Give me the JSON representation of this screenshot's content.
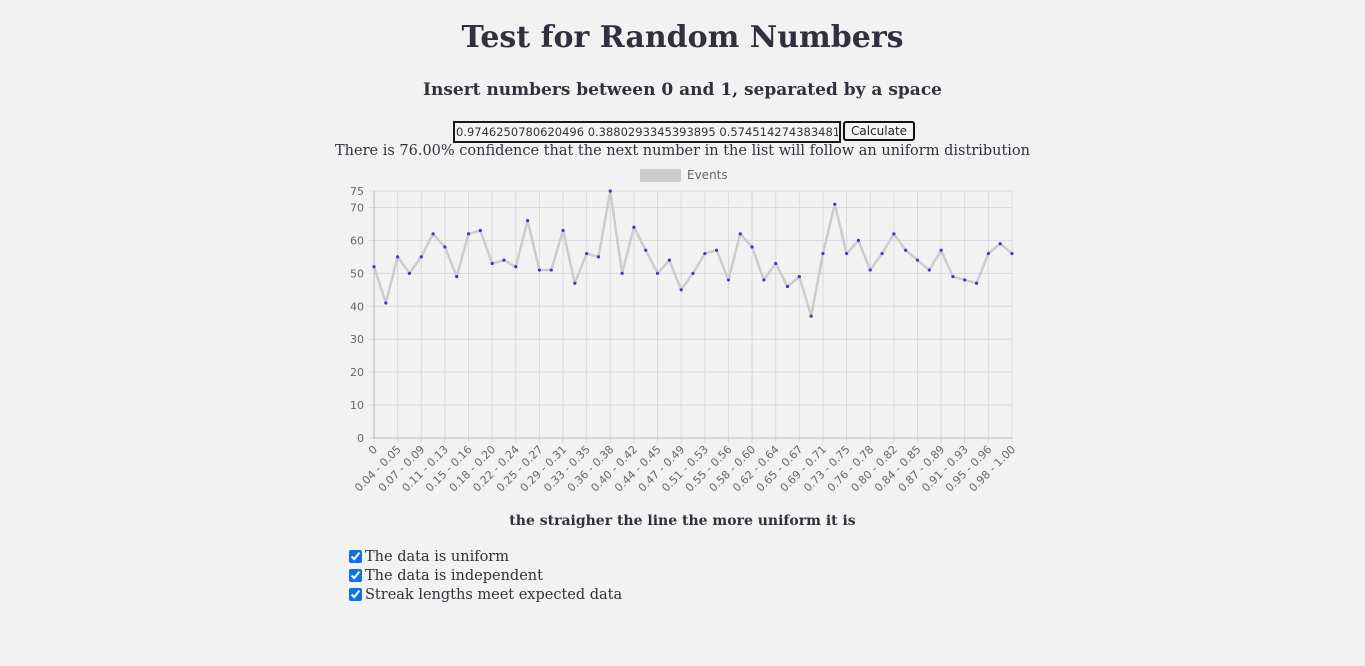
{
  "title": "Test for Random Numbers",
  "subtitle": "Insert numbers between 0 and 1, separated by a space",
  "input": {
    "value": "0.9746250780620496 0.3880293345393895 0.5745142743834810"
  },
  "calculate_label": "Calculate",
  "confidence_text": "There is 76.00% confidence that the next number in the list will follow an uniform distribution",
  "chart_data": {
    "type": "line",
    "title": "",
    "xlabel": "",
    "ylabel": "",
    "ylim": [
      0,
      75
    ],
    "yticks": [
      0,
      10,
      20,
      30,
      40,
      50,
      60,
      70,
      75
    ],
    "grid": true,
    "legend": "top-center",
    "series": [
      {
        "name": "Events",
        "values": [
          52,
          41,
          55,
          50,
          55,
          62,
          58,
          49,
          62,
          63,
          53,
          54,
          52,
          66,
          51,
          51,
          63,
          47,
          56,
          55,
          75,
          50,
          64,
          57,
          50,
          54,
          45,
          50,
          56,
          57,
          48,
          62,
          58,
          48,
          53,
          46,
          49,
          37,
          56,
          71,
          56,
          60,
          51,
          56,
          62,
          57,
          54,
          51,
          57,
          49,
          48,
          47,
          56,
          59,
          56
        ]
      }
    ],
    "tick_labels": [
      "0",
      "0.04 - 0.05",
      "0.07 - 0.09",
      "0.11 - 0.13",
      "0.15 - 0.16",
      "0.18 - 0.20",
      "0.22 - 0.24",
      "0.25 - 0.27",
      "0.29 - 0.31",
      "0.33 - 0.35",
      "0.36 - 0.38",
      "0.40 - 0.42",
      "0.44 - 0.45",
      "0.47 - 0.49",
      "0.51 - 0.53",
      "0.55 - 0.56",
      "0.58 - 0.60",
      "0.62 - 0.64",
      "0.65 - 0.67",
      "0.69 - 0.71",
      "0.73 - 0.75",
      "0.76 - 0.78",
      "0.80 - 0.82",
      "0.84 - 0.85",
      "0.87 - 0.89",
      "0.91 - 0.93",
      "0.95 - 0.96",
      "0.98 - 1.00"
    ],
    "colors": {
      "line": "#cccccc",
      "point": "#3c3cc0",
      "grid": "#d9d9d9",
      "legend_box": "#cccccc"
    }
  },
  "caption": "the straigher the line the more uniform it is",
  "checks": [
    {
      "label": "The data is uniform",
      "checked": true
    },
    {
      "label": "The data is independent",
      "checked": true
    },
    {
      "label": "Streak lengths meet expected data",
      "checked": true
    }
  ]
}
